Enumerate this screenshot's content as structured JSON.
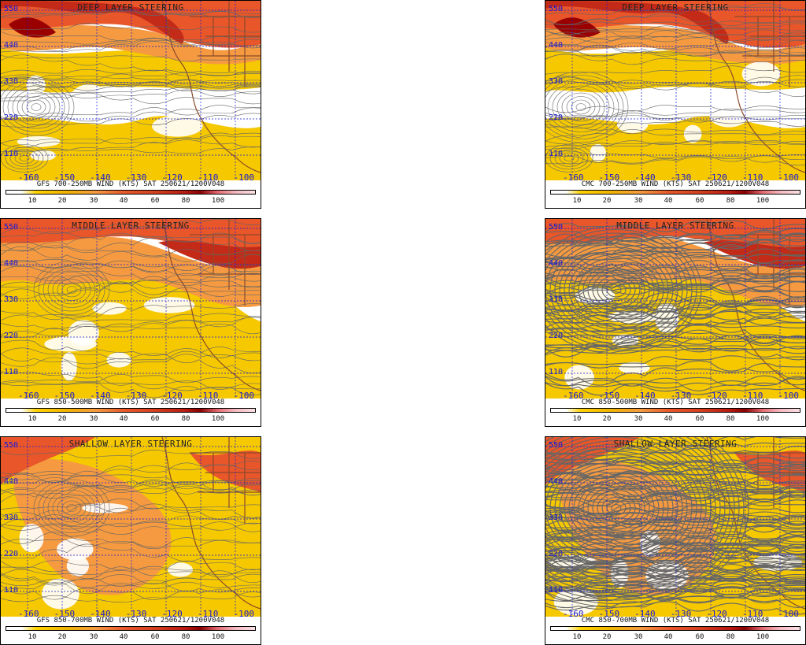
{
  "colors": {
    "pale_yellow": "#ffe97a",
    "yellow": "#f5c800",
    "orange_light": "#f59a40",
    "orange": "#e8562a",
    "red": "#c42a18",
    "dark_red": "#9a0000",
    "streamline": "#666666",
    "coast": "#8b4a2a",
    "grid": "#1a1ad6"
  },
  "lat_labels": [
    "550",
    "440",
    "330",
    "220",
    "110"
  ],
  "lon_labels": [
    "-160",
    "-150",
    "-140",
    "-130",
    "-120",
    "-110",
    "-100"
  ],
  "colorbar_ticks": [
    "10",
    "20",
    "30",
    "40",
    "60",
    "80",
    "100"
  ],
  "panels": [
    {
      "title": "DEEP LAYER STEERING",
      "caption": "GFS 700-250MB WIND (KTS) SAT 250621/1200V048",
      "model": "gfs",
      "layer": "deep"
    },
    {
      "title": "DEEP LAYER STEERING",
      "caption": "CMC 700-250MB WIND (KTS) SAT 250621/1200V048",
      "model": "cmc",
      "layer": "deep"
    },
    {
      "title": "MIDDLE LAYER STEERING",
      "caption": "GFS 850-500MB WIND (KTS) SAT 250621/1200V048",
      "model": "gfs",
      "layer": "middle"
    },
    {
      "title": "MIDDLE LAYER STEERING",
      "caption": "CMC 850-500MB WIND (KTS) SAT 250621/1200V048",
      "model": "cmc",
      "layer": "middle"
    },
    {
      "title": "SHALLOW LAYER STEERING",
      "caption": "GFS 850-700MB WIND (KTS) SAT 250621/1200V048",
      "model": "gfs",
      "layer": "shallow"
    },
    {
      "title": "SHALLOW LAYER STEERING",
      "caption": "CMC 850-700MB WIND (KTS) SAT 250621/1200V048",
      "model": "cmc",
      "layer": "shallow"
    }
  ]
}
